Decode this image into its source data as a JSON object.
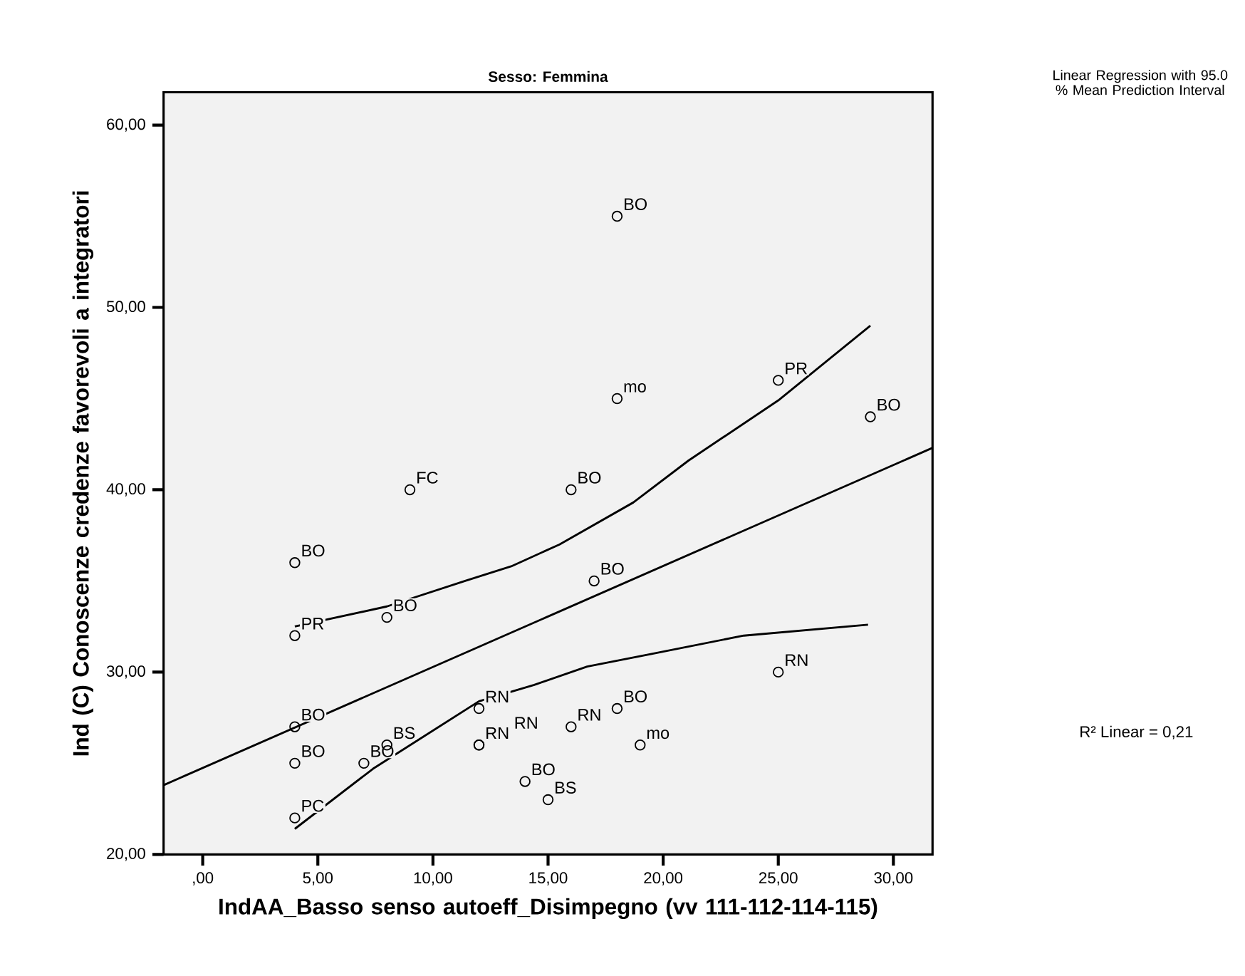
{
  "chart_data": {
    "type": "scatter",
    "title": "Sesso: Femmina",
    "xlabel": "IndAA_Basso senso autoeff_Disimpegno (vv 111-112-114-115)",
    "ylabel": "Ind (C) Conoscenze credenze favorevoli a integratori",
    "xlim": [
      -1.7,
      31.7
    ],
    "ylim": [
      20,
      61.8
    ],
    "xticks": [
      {
        "value": 0,
        "label": ",00"
      },
      {
        "value": 5,
        "label": "5,00"
      },
      {
        "value": 10,
        "label": "10,00"
      },
      {
        "value": 15,
        "label": "15,00"
      },
      {
        "value": 20,
        "label": "20,00"
      },
      {
        "value": 25,
        "label": "25,00"
      },
      {
        "value": 30,
        "label": "30,00"
      }
    ],
    "yticks": [
      {
        "value": 20,
        "label": "20,00"
      },
      {
        "value": 30,
        "label": "30,00"
      },
      {
        "value": 40,
        "label": "40,00"
      },
      {
        "value": 50,
        "label": "50,00"
      },
      {
        "value": 60,
        "label": "60,00"
      }
    ],
    "series": [
      {
        "marker": "circle",
        "color": "#000000",
        "x": [
          18,
          18,
          25,
          29,
          9,
          16,
          4,
          17,
          8,
          4,
          25,
          4,
          12,
          18,
          16,
          8,
          12,
          12,
          4,
          7,
          19,
          14,
          15,
          4
        ],
        "values": [
          55,
          45,
          46,
          44,
          40,
          40,
          36,
          35,
          33,
          32,
          30,
          27,
          28,
          28,
          27,
          26,
          26,
          26,
          25,
          25,
          26,
          24,
          23,
          22
        ]
      },
      {
        "type": "line",
        "color": "#000000",
        "x": [
          -1.7,
          31.7
        ],
        "values": [
          23.8,
          42.3
        ]
      },
      {
        "type": "line",
        "color": "#000000",
        "x": [
          4.0,
          8.0,
          11.4,
          13.4,
          15.5,
          18.7,
          21.1,
          25.0,
          29.0
        ],
        "values": [
          32.5,
          33.6,
          35.0,
          35.8,
          37.0,
          39.3,
          41.6,
          44.9,
          49.0
        ]
      },
      {
        "type": "line",
        "color": "#000000",
        "x": [
          4.0,
          7.4,
          12.0,
          14.4,
          16.7,
          19.5,
          23.5,
          28.9
        ],
        "values": [
          21.4,
          24.7,
          28.4,
          29.3,
          30.3,
          31.0,
          32.0,
          32.6
        ]
      }
    ],
    "annotations": [
      {
        "text": "BO",
        "x": 18,
        "y": 55
      },
      {
        "text": "mo",
        "x": 18,
        "y": 45
      },
      {
        "text": "PR",
        "x": 25,
        "y": 46
      },
      {
        "text": "BO",
        "x": 29,
        "y": 44
      },
      {
        "text": "FC",
        "x": 9,
        "y": 40
      },
      {
        "text": "BO",
        "x": 16,
        "y": 40
      },
      {
        "text": "BO",
        "x": 4,
        "y": 36
      },
      {
        "text": "BO",
        "x": 17,
        "y": 35
      },
      {
        "text": "BO",
        "x": 8,
        "y": 33
      },
      {
        "text": "PR",
        "x": 4,
        "y": 32
      },
      {
        "text": "RN",
        "x": 25,
        "y": 30
      },
      {
        "text": "BO",
        "x": 4,
        "y": 27
      },
      {
        "text": "RN",
        "x": 12,
        "y": 28
      },
      {
        "text": "BO",
        "x": 18,
        "y": 28
      },
      {
        "text": "RN",
        "x": 16,
        "y": 27
      },
      {
        "text": "BS",
        "x": 8,
        "y": 26
      },
      {
        "text": "RN",
        "x": 12,
        "y": 26
      },
      {
        "text": "RN",
        "x": 12,
        "y": 26
      },
      {
        "text": "BO",
        "x": 4,
        "y": 25
      },
      {
        "text": "BO",
        "x": 7,
        "y": 25
      },
      {
        "text": "mo",
        "x": 19,
        "y": 26
      },
      {
        "text": "BO",
        "x": 14,
        "y": 24
      },
      {
        "text": "BS",
        "x": 15,
        "y": 23
      },
      {
        "text": "PC",
        "x": 4,
        "y": 22
      },
      "Linear Regression with 95.0 % Mean Prediction Interval",
      "R² Linear = 0,21"
    ]
  }
}
